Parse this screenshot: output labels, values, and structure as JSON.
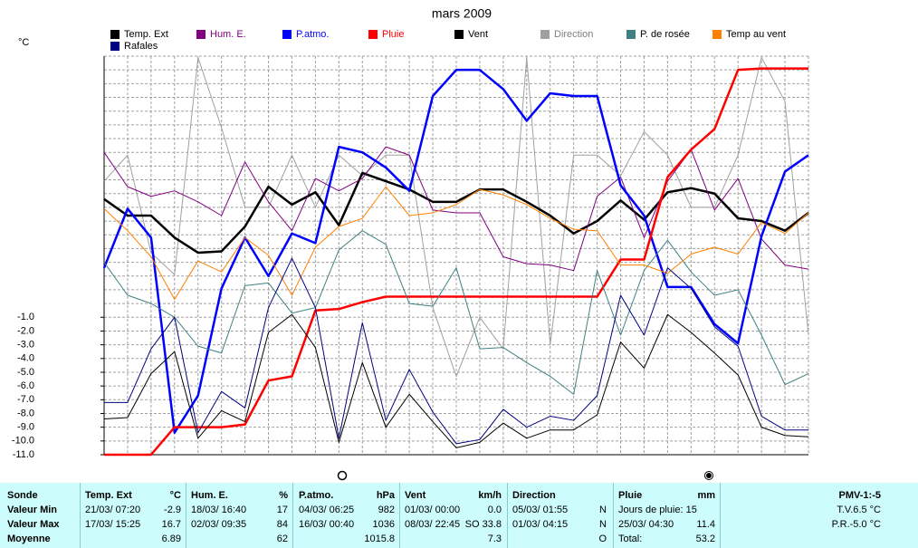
{
  "chart_data": {
    "type": "line",
    "title": "mars 2009",
    "y_label": "°C",
    "ylim": [
      -11,
      18
    ],
    "grid": true,
    "grid_step": 1,
    "yticks": [
      {
        "value": -1,
        "label": "-1.0"
      },
      {
        "value": -2,
        "label": "-2.0"
      },
      {
        "value": -3,
        "label": "-3.0"
      },
      {
        "value": -4,
        "label": "-4.0"
      },
      {
        "value": -5,
        "label": "-5.0"
      },
      {
        "value": -6,
        "label": "-6.0"
      },
      {
        "value": -7,
        "label": "-7.0"
      },
      {
        "value": -8,
        "label": "-8.0"
      },
      {
        "value": -9,
        "label": "-9.0"
      },
      {
        "value": -10,
        "label": "-10.0"
      },
      {
        "value": -11,
        "label": "-11.0"
      }
    ],
    "series": [
      {
        "name": "Direction",
        "color": "#a0a0a0",
        "label_color": "#808080",
        "line_width": 1,
        "values": [
          8.9,
          10.8,
          3.7,
          2.1,
          17.9,
          12.8,
          7.0,
          7.0,
          10.8,
          7.0,
          10.8,
          9.3,
          10.8,
          10.8,
          -0.3,
          -5.3,
          -1.0,
          -3.3,
          17.9,
          -3.0,
          10.8,
          10.8,
          9.3,
          12.5,
          10.8,
          7.0,
          7.0,
          10.8,
          17.9,
          14.7,
          -2.3
        ]
      },
      {
        "name": "Temp. Ext",
        "color": "#000000",
        "label_color": "#000000",
        "line_width": 2.5,
        "values": [
          7.6,
          6.4,
          6.4,
          4.8,
          3.7,
          3.8,
          5.6,
          8.5,
          7.2,
          8.1,
          5.7,
          9.5,
          8.9,
          8.3,
          7.4,
          7.4,
          8.3,
          8.3,
          7.4,
          6.4,
          5.1,
          6.0,
          7.5,
          6.1,
          8.1,
          8.4,
          8.0,
          6.2,
          6.0,
          5.3,
          6.6
        ]
      },
      {
        "name": "Hum. E.",
        "color": "#800080",
        "label_color": "#800080",
        "line_width": 1,
        "values": [
          11.0,
          8.5,
          7.8,
          8.2,
          7.4,
          6.4,
          10.3,
          7.4,
          5.3,
          9.1,
          8.2,
          9.1,
          11.4,
          10.8,
          6.8,
          6.6,
          6.6,
          3.4,
          2.9,
          2.8,
          2.4,
          7.8,
          9.2,
          4.8,
          8.9,
          11.2,
          6.8,
          9.1,
          4.7,
          2.8,
          2.5
        ]
      },
      {
        "name": "P.atmo.",
        "color": "#0000ff",
        "label_color": "#0000ff",
        "line_width": 2.5,
        "values": [
          2.6,
          6.9,
          4.8,
          -9.4,
          -6.7,
          1.1,
          4.8,
          2.0,
          5.1,
          4.4,
          11.4,
          11.0,
          9.9,
          8.2,
          15.1,
          17.0,
          17.0,
          15.6,
          13.3,
          15.3,
          15.1,
          15.1,
          8.6,
          6.4,
          1.2,
          1.2,
          -1.5,
          -2.9,
          4.9,
          9.6,
          10.8
        ]
      },
      {
        "name": "Pluie",
        "color": "#ff0000",
        "label_color": "#ff0000",
        "line_width": 2.5,
        "values": [
          -11,
          -11,
          -11,
          -9.0,
          -9.0,
          -9.0,
          -8.8,
          -5.6,
          -5.3,
          -0.5,
          -0.4,
          0.1,
          0.5,
          0.5,
          0.5,
          0.5,
          0.5,
          0.5,
          0.5,
          0.5,
          0.5,
          0.5,
          3.2,
          3.2,
          9.2,
          11.2,
          12.7,
          17.0,
          17.1,
          17.1,
          17.1
        ]
      },
      {
        "name": "Vent",
        "color": "#000000",
        "label_color": "#000000",
        "line_width": 1,
        "values": [
          -8.4,
          -8.3,
          -5.1,
          -3.5,
          -9.8,
          -7.8,
          -8.6,
          -2.1,
          -0.8,
          -3.2,
          -10.1,
          -4.3,
          -9.0,
          -6.6,
          -8.6,
          -10.5,
          -10.1,
          -8.7,
          -9.8,
          -9.2,
          -9.2,
          -8.1,
          -2.8,
          -4.7,
          -0.8,
          -2.1,
          -3.6,
          -5.2,
          -9.0,
          -9.6,
          -9.7
        ]
      },
      {
        "name": "P. de rosée",
        "color": "#408080",
        "label_color": "#000000",
        "line_width": 1,
        "values": [
          3.0,
          0.6,
          0.0,
          -1.0,
          -3.1,
          -3.6,
          1.3,
          1.5,
          -0.7,
          -0.3,
          3.9,
          5.3,
          4.3,
          0.0,
          -0.2,
          2.6,
          -3.3,
          -3.2,
          -4.3,
          -5.3,
          -6.6,
          2.4,
          -2.3,
          2.4,
          4.6,
          2.3,
          0.6,
          1.0,
          -2.3,
          -5.9,
          -5.1
        ]
      },
      {
        "name": "Temp au vent",
        "color": "#ff8000",
        "label_color": "#000000",
        "line_width": 1,
        "values": [
          6.9,
          5.3,
          3.4,
          0.3,
          3.1,
          2.3,
          4.8,
          3.5,
          0.6,
          4.1,
          5.6,
          6.2,
          8.5,
          6.4,
          6.6,
          7.2,
          8.3,
          7.9,
          7.2,
          6.2,
          5.4,
          5.3,
          2.8,
          2.8,
          2.2,
          3.6,
          4.1,
          3.6,
          5.9,
          5.1,
          6.6
        ]
      },
      {
        "name": "Rafales",
        "color": "#000080",
        "label_color": "#000000",
        "line_width": 1,
        "values": [
          -7.2,
          -7.2,
          -3.3,
          -1.0,
          -9.4,
          -6.4,
          -7.6,
          -0.3,
          3.3,
          -0.3,
          -9.8,
          -1.4,
          -8.5,
          -4.8,
          -7.9,
          -10.2,
          -9.9,
          -7.7,
          -9.0,
          -8.2,
          -8.5,
          -6.7,
          0.6,
          -2.3,
          2.6,
          1.1,
          -1.7,
          -3.1,
          -8.2,
          -9.2,
          -9.2
        ]
      }
    ],
    "legend_order": [
      1,
      2,
      3,
      4,
      5,
      0,
      6,
      7,
      8
    ]
  },
  "table": {
    "row_labels": [
      "Sonde",
      "Valeur Min",
      "Valeur Max",
      "Moyenne"
    ],
    "columns": [
      {
        "name": "Temp. Ext",
        "unit": "°C",
        "rows": [
          [
            "21/03/ 07:20",
            "-2.9"
          ],
          [
            "17/03/ 15:25",
            "16.7"
          ],
          [
            null,
            "6.89"
          ]
        ]
      },
      {
        "name": "Hum. E.",
        "unit": "%",
        "rows": [
          [
            "18/03/ 16:40",
            "17"
          ],
          [
            "02/03/ 09:35",
            "84"
          ],
          [
            null,
            "62"
          ]
        ]
      },
      {
        "name": "P.atmo.",
        "unit": "hPa",
        "rows": [
          [
            "04/03/ 06:25",
            "982"
          ],
          [
            "16/03/ 00:40",
            "1036"
          ],
          [
            null,
            "1015.8"
          ]
        ]
      },
      {
        "name": "Vent",
        "unit": "km/h",
        "rows": [
          [
            "01/03/ 00:00",
            "0.0"
          ],
          [
            "08/03/ 22:45",
            "SO 33.8"
          ],
          [
            null,
            "7.3"
          ]
        ]
      },
      {
        "name": "Direction",
        "unit": null,
        "rows": [
          [
            "05/03/ 01:55",
            "N"
          ],
          [
            "01/03/ 04:15",
            "N"
          ],
          [
            null,
            "O"
          ]
        ]
      },
      {
        "name": "Pluie",
        "unit": "mm",
        "rows": [
          [
            "Jours de pluie: 15",
            null
          ],
          [
            "25/03/ 04:30",
            "11.4"
          ],
          [
            "Total:",
            "53.2"
          ]
        ]
      }
    ],
    "summary": [
      "PMV-1:-5",
      "T.V.6.5 °C",
      "P.R.-5.0 °C"
    ]
  }
}
